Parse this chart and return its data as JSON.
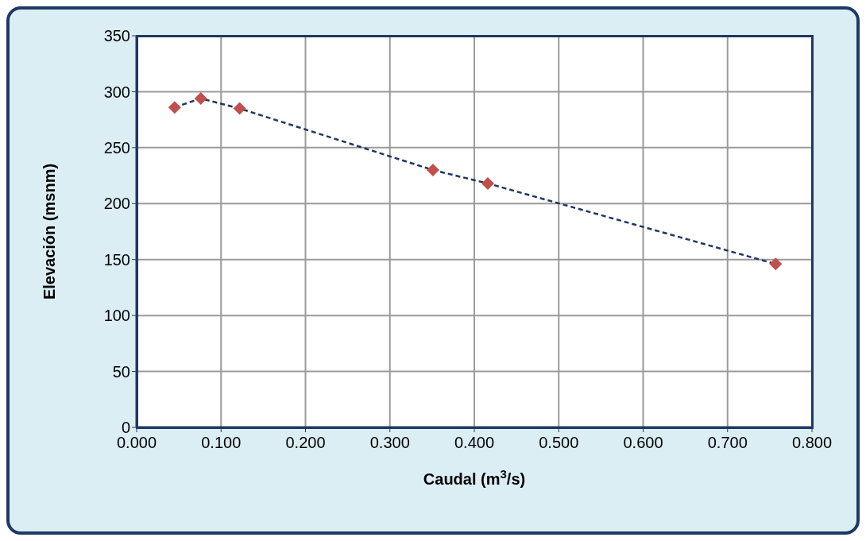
{
  "chart_data": {
    "type": "line",
    "xlabel": "Caudal (m$^{3}$/s)",
    "ylabel": "Elevación (msnm)",
    "series": [
      {
        "color": "#1f3864",
        "colors": [
          "#c0504d",
          "#c0504d",
          "#c0504d",
          "#c0504d",
          "#c0504d",
          "#c0504d"
        ],
        "x": [
          0.045,
          0.076,
          0.122,
          0.351,
          0.416,
          0.757
        ],
        "values": [
          286,
          294,
          285,
          230,
          218,
          146
        ]
      }
    ],
    "xlim": [
      0,
      0.8
    ],
    "xticks": [
      {
        "value": 0,
        "label": "0.000"
      },
      {
        "value": 0.1,
        "label": "0.100"
      },
      {
        "value": 0.2,
        "label": "0.200"
      },
      {
        "value": 0.3,
        "label": "0.300"
      },
      {
        "value": 0.4,
        "label": "0.400"
      },
      {
        "value": 0.5,
        "label": "0.500"
      },
      {
        "value": 0.6,
        "label": "0.600"
      },
      {
        "value": 0.7,
        "label": "0.700"
      },
      {
        "value": 0.8,
        "label": "0.800"
      }
    ],
    "ylim": [
      0,
      350
    ],
    "yticks": [
      0,
      50,
      100,
      150,
      200,
      250,
      300,
      350
    ],
    "grid": true,
    "marker": "diamond",
    "line_style": "dashed"
  }
}
